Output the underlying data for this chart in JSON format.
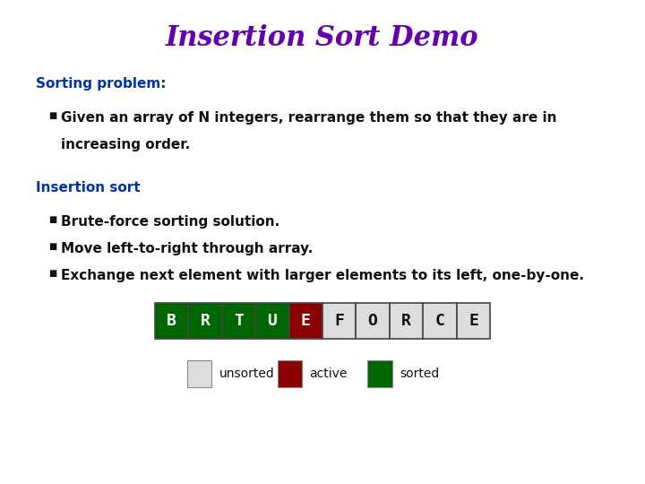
{
  "title": "Insertion Sort Demo",
  "title_color": "#6600aa",
  "title_fontsize": 22,
  "bg_color": "#ffffff",
  "section1_header": "Sorting problem:",
  "section1_color": "#0033aa",
  "section1_items_line1": "Given an array of N integers, rearrange them so that they are in",
  "section1_items_line2": "increasing order.",
  "section2_header": "Insertion sort",
  "section2_color": "#0033aa",
  "section2_items": [
    "Brute-force sorting solution.",
    "Move left-to-right through array.",
    "Exchange next element with larger elements to its left, one-by-one."
  ],
  "array_letters": [
    "B",
    "R",
    "T",
    "U",
    "E",
    "F",
    "O",
    "R",
    "C",
    "E"
  ],
  "array_colors": [
    "#006600",
    "#006600",
    "#006600",
    "#006600",
    "#8b0000",
    "#dddddd",
    "#dddddd",
    "#dddddd",
    "#dddddd",
    "#dddddd"
  ],
  "array_text_colors": [
    "#ffffff",
    "#ffffff",
    "#ffffff",
    "#ffffff",
    "#ffffff",
    "#111111",
    "#111111",
    "#111111",
    "#111111",
    "#111111"
  ],
  "legend_items": [
    {
      "label": "unsorted",
      "color": "#dddddd"
    },
    {
      "label": "active",
      "color": "#8b0000"
    },
    {
      "label": "sorted",
      "color": "#006600"
    }
  ],
  "text_color": "#111111",
  "header_fontsize": 11,
  "item_fontsize": 11
}
